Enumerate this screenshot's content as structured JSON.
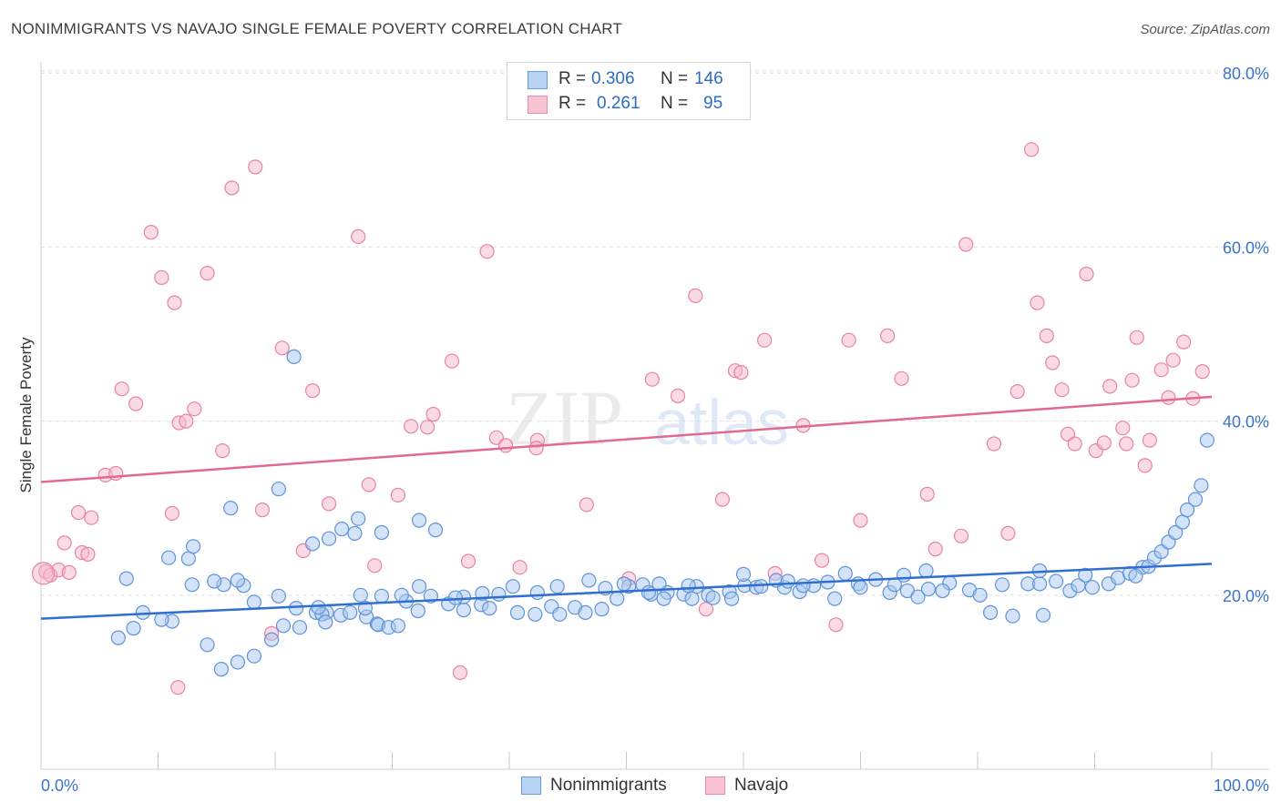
{
  "header": {
    "title": "NONIMMIGRANTS VS NAVAJO SINGLE FEMALE POVERTY CORRELATION CHART",
    "source": "Source: ZipAtlas.com"
  },
  "legend": {
    "rows": [
      {
        "r_label": "R =",
        "r_value": "0.306",
        "n_label": "N =",
        "n_value": "146"
      },
      {
        "r_label": "R =",
        "r_value": "0.261",
        "n_label": "N =",
        "n_value": "95"
      }
    ]
  },
  "bottom_legend": [
    "Nonimmigrants",
    "Navajo"
  ],
  "watermark": {
    "zip": "ZIP",
    "atlas": "atlas"
  },
  "colors": {
    "blue_fill": "#a9c8f0",
    "blue_stroke": "#5d93d8",
    "blue_line": "#2f6fd0",
    "pink_fill": "#f6b8cb",
    "pink_stroke": "#e8849f",
    "pink_line": "#e06a90",
    "axis_text": "#3a74c9",
    "grid": "#e0e0e0"
  },
  "chart_data": {
    "type": "scatter",
    "title": "NONIMMIGRANTS VS NAVAJO SINGLE FEMALE POVERTY CORRELATION CHART",
    "xlabel": "",
    "ylabel": "Single Female Poverty",
    "xlim": [
      0,
      100
    ],
    "ylim": [
      0,
      82
    ],
    "x_tick_labels": [
      "0.0%",
      "100.0%"
    ],
    "y_ticks": [
      20,
      40,
      60,
      80
    ],
    "y_tick_labels": [
      "20.0%",
      "40.0%",
      "60.0%",
      "80.0%"
    ],
    "series": [
      {
        "name": "Nonimmigrants",
        "color": "blue",
        "trend": {
          "x": [
            0,
            100
          ],
          "y": [
            17.3,
            23.6
          ]
        },
        "points": [
          [
            21.6,
            47.4
          ],
          [
            20.3,
            32.2
          ],
          [
            16.2,
            30.0
          ],
          [
            27.1,
            28.8
          ],
          [
            25.7,
            27.6
          ],
          [
            32.3,
            28.6
          ],
          [
            29.1,
            27.2
          ],
          [
            33.7,
            27.5
          ],
          [
            26.8,
            27.1
          ],
          [
            24.6,
            26.5
          ],
          [
            23.2,
            25.9
          ],
          [
            7.3,
            21.9
          ],
          [
            10.9,
            24.3
          ],
          [
            12.6,
            24.2
          ],
          [
            13.0,
            25.6
          ],
          [
            15.6,
            21.2
          ],
          [
            12.9,
            21.2
          ],
          [
            17.3,
            21.1
          ],
          [
            14.8,
            21.6
          ],
          [
            16.8,
            21.7
          ],
          [
            23.5,
            18.0
          ],
          [
            24.4,
            18.0
          ],
          [
            24.0,
            17.8
          ],
          [
            25.6,
            17.7
          ],
          [
            27.8,
            17.5
          ],
          [
            28.7,
            16.7
          ],
          [
            28.8,
            16.6
          ],
          [
            29.7,
            16.3
          ],
          [
            30.5,
            16.5
          ],
          [
            32.2,
            18.2
          ],
          [
            34.8,
            19.0
          ],
          [
            36.1,
            18.3
          ],
          [
            37.6,
            18.9
          ],
          [
            38.3,
            18.5
          ],
          [
            40.7,
            18.0
          ],
          [
            42.2,
            17.8
          ],
          [
            43.6,
            18.7
          ],
          [
            44.3,
            17.8
          ],
          [
            45.6,
            18.6
          ],
          [
            46.5,
            18.0
          ],
          [
            47.9,
            18.4
          ],
          [
            49.2,
            19.6
          ],
          [
            52.1,
            20.1
          ],
          [
            53.5,
            20.3
          ],
          [
            54.9,
            20.1
          ],
          [
            55.6,
            19.6
          ],
          [
            57.0,
            20.0
          ],
          [
            58.8,
            20.4
          ],
          [
            60.1,
            21.1
          ],
          [
            61.1,
            20.9
          ],
          [
            61.5,
            21.0
          ],
          [
            63.5,
            20.9
          ],
          [
            64.8,
            20.4
          ],
          [
            66.0,
            21.1
          ],
          [
            67.2,
            21.5
          ],
          [
            67.8,
            19.6
          ],
          [
            69.8,
            21.3
          ],
          [
            71.3,
            21.8
          ],
          [
            72.5,
            20.3
          ],
          [
            74.0,
            20.5
          ],
          [
            74.9,
            19.8
          ],
          [
            75.8,
            20.7
          ],
          [
            77.6,
            21.4
          ],
          [
            79.3,
            20.6
          ],
          [
            82.1,
            21.2
          ],
          [
            84.3,
            21.3
          ],
          [
            85.3,
            21.3
          ],
          [
            86.7,
            21.6
          ],
          [
            87.9,
            20.5
          ],
          [
            88.6,
            21.1
          ],
          [
            89.8,
            20.9
          ],
          [
            91.2,
            21.3
          ],
          [
            92.0,
            22.0
          ],
          [
            93.0,
            22.5
          ],
          [
            94.1,
            23.2
          ],
          [
            94.6,
            23.3
          ],
          [
            95.1,
            24.3
          ],
          [
            95.7,
            25.0
          ],
          [
            96.3,
            26.1
          ],
          [
            96.9,
            27.2
          ],
          [
            97.5,
            28.4
          ],
          [
            97.9,
            29.8
          ],
          [
            98.6,
            31.0
          ],
          [
            99.1,
            32.6
          ],
          [
            99.6,
            37.8
          ],
          [
            68.7,
            22.5
          ],
          [
            73.7,
            22.3
          ],
          [
            85.3,
            22.8
          ],
          [
            89.2,
            22.3
          ],
          [
            93.5,
            22.2
          ],
          [
            75.6,
            22.8
          ],
          [
            62.8,
            21.7
          ],
          [
            60.0,
            22.4
          ],
          [
            56.0,
            21.0
          ],
          [
            52.8,
            21.3
          ],
          [
            51.4,
            21.2
          ],
          [
            50.2,
            21.0
          ],
          [
            48.2,
            20.8
          ],
          [
            42.4,
            20.3
          ],
          [
            39.1,
            20.1
          ],
          [
            37.7,
            20.2
          ],
          [
            36.1,
            19.8
          ],
          [
            33.3,
            19.9
          ],
          [
            31.2,
            19.3
          ],
          [
            29.1,
            19.9
          ],
          [
            27.7,
            18.5
          ],
          [
            26.4,
            18.0
          ],
          [
            24.3,
            16.9
          ],
          [
            22.1,
            16.3
          ],
          [
            20.7,
            16.5
          ],
          [
            19.7,
            14.9
          ],
          [
            18.2,
            13.0
          ],
          [
            16.8,
            12.3
          ],
          [
            15.4,
            11.5
          ],
          [
            14.2,
            14.3
          ],
          [
            11.2,
            17.0
          ],
          [
            10.3,
            17.2
          ],
          [
            8.7,
            18.0
          ],
          [
            7.9,
            16.2
          ],
          [
            6.6,
            15.1
          ],
          [
            18.2,
            19.2
          ],
          [
            20.3,
            19.9
          ],
          [
            21.8,
            18.5
          ],
          [
            23.7,
            18.6
          ],
          [
            27.3,
            20.0
          ],
          [
            30.8,
            20.0
          ],
          [
            32.3,
            21.0
          ],
          [
            35.4,
            19.7
          ],
          [
            40.3,
            21.0
          ],
          [
            44.1,
            21.0
          ],
          [
            46.8,
            21.7
          ],
          [
            49.8,
            21.3
          ],
          [
            51.9,
            20.3
          ],
          [
            53.2,
            19.6
          ],
          [
            55.3,
            21.1
          ],
          [
            57.4,
            19.7
          ],
          [
            59.0,
            19.6
          ],
          [
            63.8,
            21.6
          ],
          [
            65.1,
            21.1
          ],
          [
            70.0,
            20.9
          ],
          [
            72.9,
            21.2
          ],
          [
            77.0,
            20.5
          ],
          [
            80.2,
            20.0
          ],
          [
            81.1,
            18.0
          ],
          [
            83.0,
            17.6
          ],
          [
            85.6,
            17.7
          ]
        ]
      },
      {
        "name": "Navajo",
        "color": "pink",
        "trend": {
          "x": [
            0,
            100
          ],
          "y": [
            33.0,
            42.8
          ]
        },
        "points": [
          [
            0.4,
            22.7
          ],
          [
            2.0,
            26.0
          ],
          [
            3.2,
            29.5
          ],
          [
            4.3,
            28.9
          ],
          [
            5.5,
            33.8
          ],
          [
            6.4,
            34.0
          ],
          [
            6.9,
            43.7
          ],
          [
            8.1,
            42.0
          ],
          [
            9.4,
            61.7
          ],
          [
            10.3,
            56.5
          ],
          [
            11.4,
            53.6
          ],
          [
            11.8,
            39.8
          ],
          [
            12.4,
            40.0
          ],
          [
            13.1,
            41.4
          ],
          [
            14.2,
            57.0
          ],
          [
            15.5,
            36.6
          ],
          [
            16.3,
            66.8
          ],
          [
            18.3,
            69.2
          ],
          [
            18.9,
            29.8
          ],
          [
            19.7,
            15.6
          ],
          [
            20.6,
            48.4
          ],
          [
            22.4,
            25.1
          ],
          [
            23.2,
            43.5
          ],
          [
            24.6,
            30.5
          ],
          [
            27.1,
            61.2
          ],
          [
            28.0,
            32.7
          ],
          [
            28.5,
            23.4
          ],
          [
            30.5,
            31.5
          ],
          [
            31.6,
            39.4
          ],
          [
            33.0,
            39.3
          ],
          [
            33.5,
            40.8
          ],
          [
            35.1,
            46.9
          ],
          [
            35.8,
            11.1
          ],
          [
            36.5,
            23.9
          ],
          [
            38.1,
            59.5
          ],
          [
            38.9,
            38.1
          ],
          [
            39.7,
            37.2
          ],
          [
            40.9,
            23.2
          ],
          [
            42.4,
            37.8
          ],
          [
            42.3,
            36.9
          ],
          [
            46.6,
            30.4
          ],
          [
            50.2,
            21.9
          ],
          [
            52.2,
            44.8
          ],
          [
            54.4,
            42.9
          ],
          [
            55.9,
            54.4
          ],
          [
            56.8,
            18.4
          ],
          [
            58.2,
            31.0
          ],
          [
            59.3,
            45.8
          ],
          [
            59.8,
            45.6
          ],
          [
            61.8,
            49.3
          ],
          [
            62.7,
            22.5
          ],
          [
            65.1,
            39.5
          ],
          [
            66.7,
            24.0
          ],
          [
            67.9,
            16.6
          ],
          [
            69.0,
            49.3
          ],
          [
            70.0,
            28.6
          ],
          [
            72.3,
            49.8
          ],
          [
            73.5,
            44.9
          ],
          [
            75.7,
            31.6
          ],
          [
            76.4,
            25.3
          ],
          [
            78.6,
            26.8
          ],
          [
            79.0,
            60.3
          ],
          [
            81.4,
            37.4
          ],
          [
            82.6,
            27.1
          ],
          [
            83.4,
            43.4
          ],
          [
            84.6,
            71.2
          ],
          [
            85.1,
            53.6
          ],
          [
            85.9,
            49.8
          ],
          [
            86.4,
            46.7
          ],
          [
            87.2,
            43.6
          ],
          [
            87.7,
            38.5
          ],
          [
            88.3,
            37.4
          ],
          [
            89.3,
            56.9
          ],
          [
            90.1,
            36.6
          ],
          [
            90.8,
            37.5
          ],
          [
            91.3,
            44.0
          ],
          [
            92.4,
            39.2
          ],
          [
            92.7,
            37.4
          ],
          [
            93.2,
            44.7
          ],
          [
            93.6,
            49.6
          ],
          [
            94.3,
            34.9
          ],
          [
            94.7,
            37.8
          ],
          [
            95.7,
            45.9
          ],
          [
            96.3,
            42.7
          ],
          [
            96.7,
            47.0
          ],
          [
            97.6,
            49.1
          ],
          [
            98.4,
            42.6
          ],
          [
            99.2,
            45.7
          ],
          [
            0.8,
            22.3
          ],
          [
            1.5,
            22.9
          ],
          [
            2.4,
            22.6
          ],
          [
            3.5,
            24.9
          ],
          [
            4.0,
            24.7
          ],
          [
            11.2,
            29.4
          ],
          [
            11.7,
            9.4
          ]
        ]
      }
    ]
  }
}
